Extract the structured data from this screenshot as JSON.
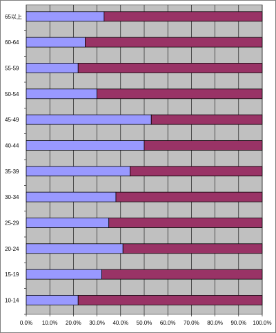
{
  "chart_data": {
    "type": "bar",
    "orientation": "horizontal",
    "stacked": "percent",
    "categories": [
      "65以上",
      "60-64",
      "55-59",
      "50-54",
      "45-49",
      "40-44",
      "35-39",
      "30-34",
      "25-29",
      "20-24",
      "15-19",
      "10-14"
    ],
    "series": [
      {
        "values": [
          33,
          25,
          22,
          30,
          53,
          50,
          44,
          38,
          35,
          41,
          32,
          22
        ],
        "color": "#9999ff"
      },
      {
        "values": [
          67,
          75,
          78,
          70,
          47,
          50,
          56,
          62,
          65,
          59,
          68,
          78
        ],
        "color": "#993366"
      }
    ],
    "x_ticks": [
      "0.0%",
      "10.0%",
      "20.0%",
      "30.0%",
      "40.0%",
      "50.0%",
      "60.0%",
      "70.0%",
      "80.0%",
      "90.0%",
      "100.0%"
    ],
    "xlim": [
      0,
      100
    ],
    "plot_background": "#c0c0c0",
    "grid": "vertical",
    "legend": "none",
    "title": "",
    "xlabel": "",
    "ylabel": ""
  }
}
